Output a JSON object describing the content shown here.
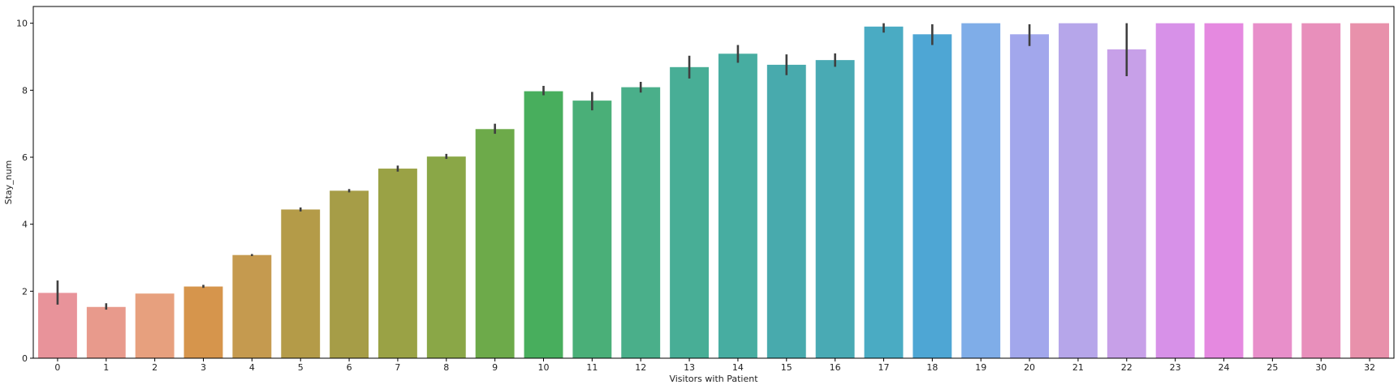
{
  "chart_data": {
    "type": "bar",
    "xlabel": "Visitors with Patient",
    "ylabel": "Stay_num",
    "ylim": [
      0,
      10.5
    ],
    "yticks": [
      0,
      2,
      4,
      6,
      8,
      10
    ],
    "grid": false,
    "categories": [
      "0",
      "1",
      "2",
      "3",
      "4",
      "5",
      "6",
      "7",
      "8",
      "9",
      "10",
      "11",
      "12",
      "13",
      "14",
      "15",
      "16",
      "17",
      "18",
      "19",
      "20",
      "21",
      "22",
      "23",
      "24",
      "25",
      "30",
      "32"
    ],
    "values": [
      1.95,
      1.53,
      1.93,
      2.14,
      3.08,
      4.44,
      5.0,
      5.66,
      6.02,
      6.84,
      7.97,
      7.69,
      8.09,
      8.69,
      9.09,
      8.76,
      8.9,
      9.9,
      9.67,
      10.0,
      9.67,
      10.0,
      9.22,
      10.0,
      10.0,
      10.0,
      10.0,
      10.0
    ],
    "error_low": [
      1.6,
      1.45,
      null,
      2.1,
      3.05,
      4.38,
      4.95,
      5.57,
      5.95,
      6.7,
      7.85,
      7.4,
      7.93,
      8.35,
      8.82,
      8.45,
      8.7,
      9.72,
      9.35,
      null,
      9.32,
      null,
      8.42,
      null,
      null,
      null,
      null,
      null
    ],
    "error_high": [
      2.32,
      1.64,
      null,
      2.19,
      3.11,
      4.5,
      5.05,
      5.75,
      6.1,
      7.0,
      8.13,
      7.95,
      8.25,
      9.03,
      9.35,
      9.07,
      9.1,
      10.0,
      9.97,
      null,
      9.97,
      null,
      10.0,
      null,
      null,
      null,
      null,
      null
    ],
    "colors": [
      "#e8939a",
      "#e89a8c",
      "#e7a07e",
      "#d6954c",
      "#c59a4f",
      "#b49b48",
      "#a69d47",
      "#9aa245",
      "#8aa747",
      "#6daa4a",
      "#48ae5d",
      "#4aaf78",
      "#4aaf8a",
      "#48ae96",
      "#47ada1",
      "#48aaad",
      "#49aab4",
      "#4aabc3",
      "#4ea6d4",
      "#7fade8",
      "#a2a7ec",
      "#b6a6ea",
      "#c7a0e8",
      "#d791e8",
      "#e589e0",
      "#e88fca",
      "#e88fbb",
      "#e891ab"
    ],
    "errorbar_color": "#3f3f3f"
  }
}
